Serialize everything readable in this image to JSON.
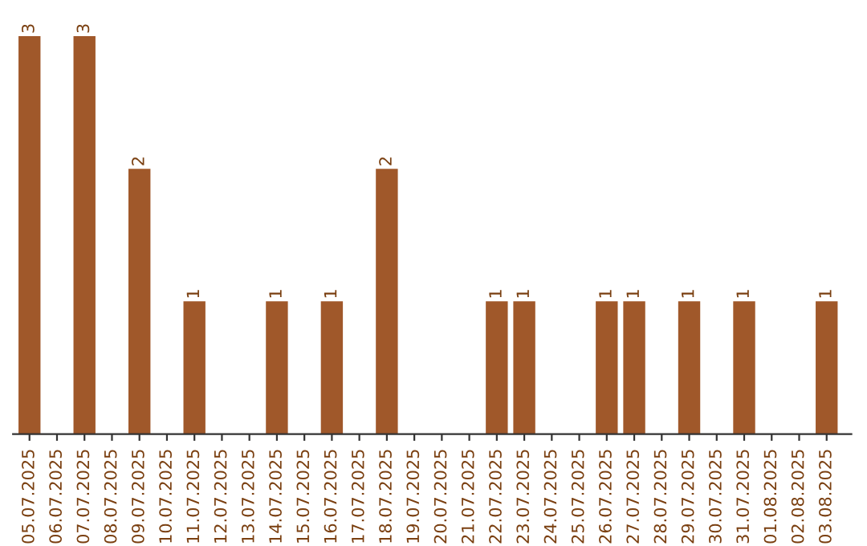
{
  "chart_data": {
    "type": "bar",
    "categories": [
      "05.07.2025",
      "06.07.2025",
      "07.07.2025",
      "08.07.2025",
      "09.07.2025",
      "10.07.2025",
      "11.07.2025",
      "12.07.2025",
      "13.07.2025",
      "14.07.2025",
      "15.07.2025",
      "16.07.2025",
      "17.07.2025",
      "18.07.2025",
      "19.07.2025",
      "20.07.2025",
      "21.07.2025",
      "22.07.2025",
      "23.07.2025",
      "24.07.2025",
      "25.07.2025",
      "26.07.2025",
      "27.07.2025",
      "28.07.2025",
      "29.07.2025",
      "30.07.2025",
      "31.07.2025",
      "01.08.2025",
      "02.08.2025",
      "03.08.2025"
    ],
    "values": [
      3,
      0,
      3,
      0,
      2,
      0,
      1,
      0,
      0,
      1,
      0,
      1,
      0,
      2,
      0,
      0,
      0,
      1,
      1,
      0,
      0,
      1,
      1,
      0,
      1,
      0,
      1,
      0,
      0,
      1
    ],
    "value_labels": [
      "3",
      null,
      "3",
      null,
      "2",
      null,
      "1",
      null,
      null,
      "1",
      null,
      "1",
      null,
      "2",
      null,
      null,
      null,
      "1",
      "1",
      null,
      null,
      "1",
      "1",
      null,
      "1",
      null,
      "1",
      null,
      null,
      "1"
    ],
    "color": "#a0582a",
    "grid": false,
    "legend": false
  }
}
